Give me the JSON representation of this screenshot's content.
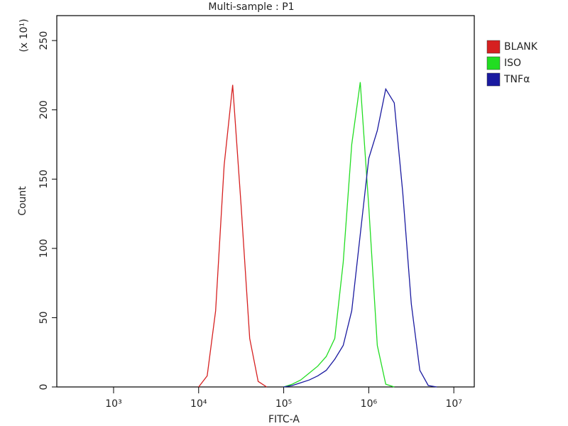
{
  "chart_data": {
    "type": "line",
    "title": "Multi-sample : P1",
    "x_label": "FITC-A",
    "y_label": "Count",
    "y_multiplier": "(x 10¹)",
    "x_scale": "log",
    "x": [
      10000,
      12589,
      15849,
      19953,
      25119,
      31623,
      39811,
      50119,
      63096,
      79433,
      100000,
      125893,
      158489,
      199526,
      251189,
      316228,
      398107,
      501187,
      630957,
      794328,
      1000000,
      1258925,
      1584893,
      1995262,
      2511886,
      3162278,
      3981072,
      5011872,
      6309573
    ],
    "series": [
      {
        "name": "BLANK",
        "color": "#d62020",
        "values": [
          0,
          8,
          55,
          160,
          218,
          130,
          35,
          4,
          0,
          null,
          null,
          null,
          null,
          null,
          null,
          null,
          null,
          null,
          null,
          null,
          null,
          null,
          null,
          null,
          null,
          null,
          null,
          null,
          null
        ]
      },
      {
        "name": "ISO",
        "color": "#22dd22",
        "values": [
          null,
          null,
          null,
          null,
          null,
          null,
          null,
          null,
          null,
          null,
          0,
          2,
          5,
          10,
          15,
          22,
          35,
          90,
          175,
          220,
          130,
          30,
          2,
          0,
          null,
          null,
          null,
          null,
          null
        ]
      },
      {
        "name": "TNFα",
        "color": "#1a1aa0",
        "values": [
          null,
          null,
          null,
          null,
          null,
          null,
          null,
          null,
          null,
          null,
          0,
          1,
          3,
          5,
          8,
          12,
          20,
          30,
          55,
          110,
          165,
          185,
          215,
          205,
          140,
          60,
          12,
          1,
          0
        ]
      }
    ],
    "xlim": [
      215,
      17400000
    ],
    "xticks": [
      {
        "value": 1000,
        "label": "10³"
      },
      {
        "value": 10000,
        "label": "10⁴"
      },
      {
        "value": 100000,
        "label": "10⁵"
      },
      {
        "value": 1000000,
        "label": "10⁶"
      },
      {
        "value": 10000000,
        "label": "10⁷"
      }
    ],
    "ylim": [
      0,
      268
    ],
    "yticks": [
      0,
      50,
      100,
      150,
      200,
      250
    ],
    "legend": "right"
  }
}
